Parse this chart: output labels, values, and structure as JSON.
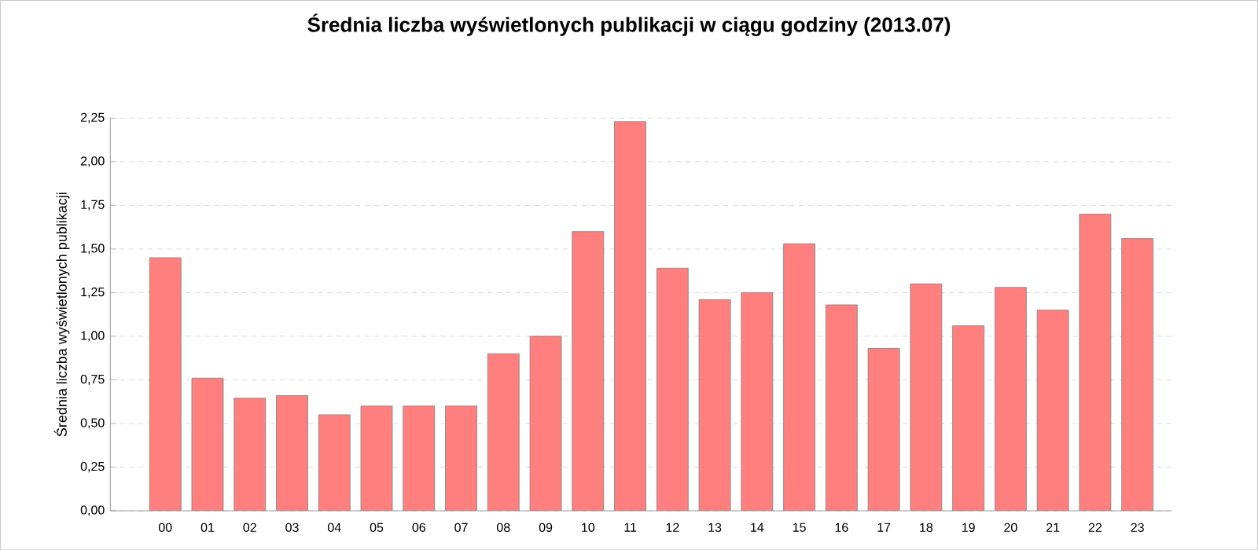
{
  "chart_data": {
    "type": "bar",
    "title": "Średnia liczba wyświetlonych publikacji w ciągu godziny (2013.07)",
    "ylabel": "Średnia liczba wyświetlonych publikacji",
    "categories": [
      "00",
      "01",
      "02",
      "03",
      "04",
      "05",
      "06",
      "07",
      "08",
      "09",
      "10",
      "11",
      "12",
      "13",
      "14",
      "15",
      "16",
      "17",
      "18",
      "19",
      "20",
      "21",
      "22",
      "23"
    ],
    "values": [
      1.45,
      0.76,
      0.645,
      0.66,
      0.55,
      0.6,
      0.6,
      0.6,
      0.9,
      1.0,
      1.6,
      2.23,
      1.39,
      1.21,
      1.25,
      1.53,
      1.18,
      0.93,
      1.3,
      1.06,
      1.28,
      1.15,
      1.7,
      1.56
    ],
    "color": "#ff7f7f",
    "ylim": [
      0,
      2.25
    ],
    "yticks": [
      {
        "value": 0,
        "label": "0,00"
      },
      {
        "value": 0.25,
        "label": "0,25"
      },
      {
        "value": 0.5,
        "label": "0,50"
      },
      {
        "value": 0.75,
        "label": "0,75"
      },
      {
        "value": 1,
        "label": "1,00"
      },
      {
        "value": 1.25,
        "label": "1,25"
      },
      {
        "value": 1.5,
        "label": "1,50"
      },
      {
        "value": 1.75,
        "label": "1,75"
      },
      {
        "value": 2,
        "label": "2,00"
      },
      {
        "value": 2.25,
        "label": "2,25"
      }
    ],
    "grid": "y"
  }
}
